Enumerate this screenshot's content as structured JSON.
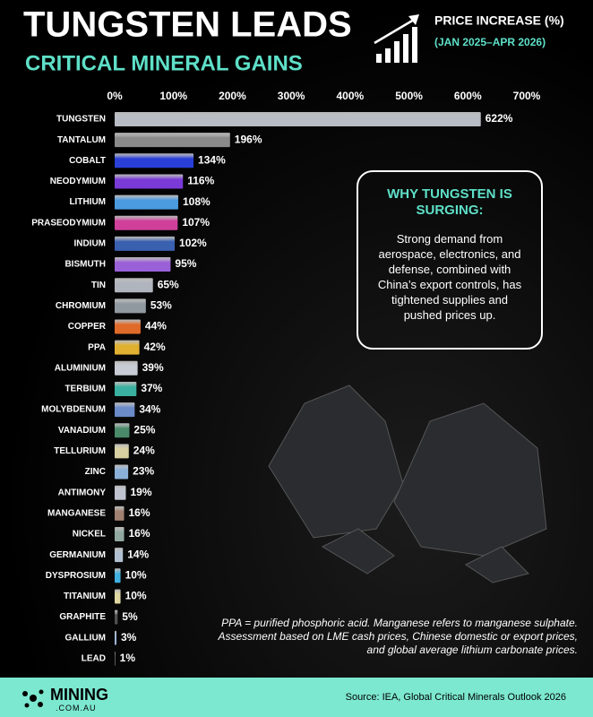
{
  "chart_data": {
    "type": "bar",
    "orientation": "horizontal",
    "title": "TUNGSTEN LEADS",
    "subtitle": "CRITICAL MINERAL GAINS",
    "legend_title": "PRICE INCREASE (%)",
    "period": "(JAN 2025–APR 2026)",
    "categories": [
      "TUNGSTEN",
      "TANTALUM",
      "COBALT",
      "NEODYMIUM",
      "LITHIUM",
      "PRASEODYMIUM",
      "INDIUM",
      "BISMUTH",
      "TIN",
      "CHROMIUM",
      "COPPER",
      "PPA",
      "ALUMINIUM",
      "TERBIUM",
      "MOLYBDENUM",
      "VANADIUM",
      "TELLURIUM",
      "ZINC",
      "ANTIMONY",
      "MANGANESE",
      "NICKEL",
      "GERMANIUM",
      "DYSPROSIUM",
      "TITANIUM",
      "GRAPHITE",
      "GALLIUM",
      "LEAD"
    ],
    "values": [
      622,
      196,
      134,
      116,
      108,
      107,
      102,
      95,
      65,
      53,
      44,
      42,
      39,
      37,
      34,
      25,
      24,
      23,
      19,
      16,
      16,
      14,
      10,
      10,
      5,
      3,
      1
    ],
    "value_labels": [
      "622%",
      "196%",
      "134%",
      "116%",
      "108%",
      "107%",
      "102%",
      "95%",
      "65%",
      "53%",
      "44%",
      "42%",
      "39%",
      "37%",
      "34%",
      "25%",
      "24%",
      "23%",
      "19%",
      "16%",
      "16%",
      "14%",
      "10%",
      "10%",
      "5%",
      "3%",
      "1%"
    ],
    "colors": [
      "#b8bcc4",
      "#8a8a8a",
      "#2a3fd8",
      "#7a3ad8",
      "#4a9ae0",
      "#d0409a",
      "#3a60b0",
      "#9a60d8",
      "#b0b4bc",
      "#9098a0",
      "#e06a2a",
      "#e0b030",
      "#c8ccd4",
      "#3ab0a0",
      "#6a8ac8",
      "#4a8a6a",
      "#d8d0a0",
      "#8ab0d8",
      "#c0c4d0",
      "#a08070",
      "#90a8a0",
      "#b0c0d0",
      "#40b0e0",
      "#e0d8a0",
      "#505050",
      "#a0b8d8",
      "#8a8a8a"
    ],
    "xlim": [
      0,
      700
    ],
    "xticks": [
      {
        "value": 0,
        "label": "0%"
      },
      {
        "value": 100,
        "label": "100%"
      },
      {
        "value": 200,
        "label": "200%"
      },
      {
        "value": 300,
        "label": "300%"
      },
      {
        "value": 400,
        "label": "400%"
      },
      {
        "value": 500,
        "label": "500%"
      },
      {
        "value": 600,
        "label": "600%"
      },
      {
        "value": 700,
        "label": "700%"
      }
    ],
    "grid": false,
    "callout": {
      "title": "WHY TUNGSTEN IS SURGING:",
      "text": "Strong demand from aerospace, electronics, and defense, combined with China’s export controls, has tightened supplies and pushed prices up."
    },
    "footnote": "PPA = purified phosphoric acid. Manganese refers to manganese sulphate. Assessment based on LME cash prices, Chinese domestic or export prices, and global average lithium carbonate prices.",
    "brand": "MINING",
    "brand_sub": ".COM.AU",
    "source": "Source: IEA, Global Critical Minerals Outlook 2026"
  }
}
